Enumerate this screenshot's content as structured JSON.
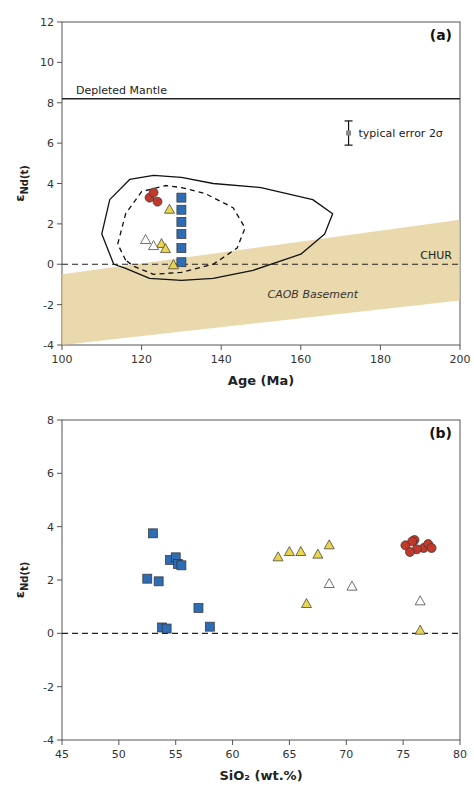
{
  "chart_data": [
    {
      "type": "scatter",
      "title": "(a)",
      "xlabel": "Age (Ma)",
      "ylabel": "εNd(t)",
      "xlim": [
        100,
        200
      ],
      "ylim": [
        -4,
        12
      ],
      "xticks": [
        100,
        120,
        140,
        160,
        180,
        200
      ],
      "yticks": [
        -4,
        -2,
        0,
        2,
        4,
        6,
        8,
        10,
        12
      ],
      "grid": false,
      "bands": [
        {
          "label": "CAOB Basement",
          "x": [
            100,
            200
          ],
          "y_top": [
            -0.5,
            2.2
          ],
          "y_bot": [
            -4.0,
            -1.8
          ],
          "color": "#dfc98a"
        }
      ],
      "reference_lines": [
        {
          "label": "CHUR",
          "y": 0.0,
          "line_style": "dashed"
        },
        {
          "label": "Depleted Mantle",
          "y": 8.2,
          "line_style": "solid"
        }
      ],
      "outlines": [
        {
          "line_style": "solid",
          "x": [
            113,
            110,
            112,
            117,
            123,
            130,
            138,
            150,
            163,
            168,
            166,
            160,
            148,
            138,
            130,
            122,
            116,
            113
          ],
          "y": [
            0.0,
            1.5,
            3.2,
            4.2,
            4.4,
            4.3,
            4.0,
            3.8,
            3.2,
            2.5,
            1.5,
            0.5,
            -0.3,
            -0.7,
            -0.8,
            -0.7,
            -0.2,
            0.0
          ]
        },
        {
          "line_style": "dashed",
          "x": [
            116,
            114,
            116,
            120,
            126,
            130,
            136,
            143,
            146,
            144,
            138,
            130,
            123,
            118,
            116
          ],
          "y": [
            0.2,
            1.0,
            2.5,
            3.6,
            3.9,
            3.8,
            3.5,
            2.8,
            1.8,
            0.8,
            0.0,
            -0.4,
            -0.5,
            -0.1,
            0.2
          ]
        }
      ],
      "series": [
        {
          "color": "#c0392b",
          "marker": "circle",
          "x": [
            122,
            124,
            123
          ],
          "values": [
            3.3,
            3.1,
            3.55
          ]
        },
        {
          "color": "#2e6db4",
          "marker": "square",
          "x": [
            130,
            130,
            130,
            130,
            130,
            130
          ],
          "values": [
            3.3,
            2.7,
            2.1,
            1.5,
            0.8,
            0.1
          ]
        },
        {
          "color": "#e8d44d",
          "marker": "triangle",
          "x": [
            127,
            125,
            126,
            128
          ],
          "values": [
            2.7,
            1.0,
            0.75,
            -0.05
          ]
        },
        {
          "color": "#ffffff",
          "marker": "triangle",
          "x": [
            121,
            123
          ],
          "values": [
            1.2,
            0.9
          ]
        }
      ],
      "error_bar": {
        "x": 172,
        "y": 6.5,
        "error": 0.6,
        "label": "typical error 2σ"
      }
    },
    {
      "type": "scatter",
      "title": "(b)",
      "xlabel": "SiO₂ (wt.%)",
      "ylabel": "εNd(t)",
      "xlim": [
        45,
        80
      ],
      "ylim": [
        -4,
        8
      ],
      "xticks": [
        45,
        50,
        55,
        60,
        65,
        70,
        75,
        80
      ],
      "yticks": [
        -4,
        -2,
        0,
        2,
        4,
        6,
        8
      ],
      "grid": false,
      "reference_lines": [
        {
          "y": 0,
          "line_style": "dashed"
        }
      ],
      "series": [
        {
          "color": "#c0392b",
          "marker": "circle",
          "x": [
            75.2,
            76.0,
            76.8,
            76.2,
            75.6,
            77.2,
            75.8,
            77.5
          ],
          "values": [
            3.3,
            3.5,
            3.2,
            3.15,
            3.05,
            3.35,
            3.45,
            3.2
          ]
        },
        {
          "color": "#2e6db4",
          "marker": "square",
          "x": [
            53.0,
            52.5,
            53.5,
            53.8,
            54.2,
            54.5,
            55.0,
            55.2,
            55.5,
            57.0,
            58.0
          ],
          "values": [
            3.75,
            2.05,
            1.95,
            0.22,
            0.18,
            2.75,
            2.85,
            2.6,
            2.55,
            0.95,
            0.25
          ]
        },
        {
          "color": "#e8d44d",
          "marker": "triangle",
          "x": [
            64.0,
            65.0,
            66.0,
            67.5,
            68.5,
            66.5,
            76.5
          ],
          "values": [
            2.85,
            3.05,
            3.05,
            2.95,
            3.3,
            1.1,
            0.1
          ]
        },
        {
          "color": "#ffffff",
          "marker": "triangle",
          "x": [
            68.5,
            70.5,
            76.5
          ],
          "values": [
            1.85,
            1.75,
            1.2
          ]
        }
      ]
    }
  ]
}
